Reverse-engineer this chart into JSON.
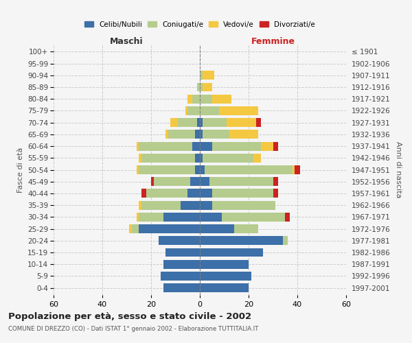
{
  "age_groups": [
    "0-4",
    "5-9",
    "10-14",
    "15-19",
    "20-24",
    "25-29",
    "30-34",
    "35-39",
    "40-44",
    "45-49",
    "50-54",
    "55-59",
    "60-64",
    "65-69",
    "70-74",
    "75-79",
    "80-84",
    "85-89",
    "90-94",
    "95-99",
    "100+"
  ],
  "birth_years": [
    "1997-2001",
    "1992-1996",
    "1987-1991",
    "1982-1986",
    "1977-1981",
    "1972-1976",
    "1967-1971",
    "1962-1966",
    "1957-1961",
    "1952-1956",
    "1947-1951",
    "1942-1946",
    "1937-1941",
    "1932-1936",
    "1927-1931",
    "1922-1926",
    "1917-1921",
    "1912-1916",
    "1907-1911",
    "1902-1906",
    "≤ 1901"
  ],
  "maschi": {
    "celibi": [
      15,
      16,
      15,
      14,
      17,
      25,
      15,
      8,
      5,
      4,
      2,
      2,
      3,
      2,
      1,
      0,
      0,
      0,
      0,
      0,
      0
    ],
    "coniugati": [
      0,
      0,
      0,
      0,
      0,
      3,
      10,
      16,
      17,
      15,
      23,
      22,
      22,
      11,
      8,
      5,
      3,
      1,
      0,
      0,
      0
    ],
    "vedovi": [
      0,
      0,
      0,
      0,
      0,
      1,
      1,
      1,
      0,
      0,
      1,
      1,
      1,
      1,
      3,
      1,
      2,
      0,
      0,
      0,
      0
    ],
    "divorziati": [
      0,
      0,
      0,
      0,
      0,
      0,
      0,
      0,
      2,
      1,
      0,
      0,
      0,
      0,
      0,
      0,
      0,
      0,
      0,
      0,
      0
    ]
  },
  "femmine": {
    "nubili": [
      20,
      21,
      20,
      26,
      34,
      14,
      9,
      5,
      5,
      4,
      2,
      1,
      5,
      1,
      1,
      0,
      0,
      0,
      0,
      0,
      0
    ],
    "coniugate": [
      0,
      0,
      0,
      0,
      2,
      10,
      26,
      26,
      25,
      26,
      36,
      21,
      20,
      11,
      10,
      8,
      5,
      1,
      1,
      0,
      0
    ],
    "vedove": [
      0,
      0,
      0,
      0,
      0,
      0,
      0,
      0,
      0,
      0,
      1,
      3,
      5,
      12,
      12,
      16,
      8,
      4,
      5,
      0,
      0
    ],
    "divorziate": [
      0,
      0,
      0,
      0,
      0,
      0,
      2,
      0,
      2,
      2,
      2,
      0,
      2,
      0,
      2,
      0,
      0,
      0,
      0,
      0,
      0
    ]
  },
  "colors": {
    "celibi": "#3d6fa8",
    "coniugati": "#b5cc8e",
    "vedovi": "#f5c842",
    "divorziati": "#cc2222"
  },
  "xlim": 60,
  "title": "Popolazione per età, sesso e stato civile - 2002",
  "subtitle": "COMUNE DI DREZZO (CO) - Dati ISTAT 1° gennaio 2002 - Elaborazione TUTTITALIA.IT",
  "ylabel_left": "Fasce di età",
  "ylabel_right": "Anni di nascita",
  "xlabel_left": "Maschi",
  "xlabel_right": "Femmine",
  "background_color": "#f5f5f5"
}
